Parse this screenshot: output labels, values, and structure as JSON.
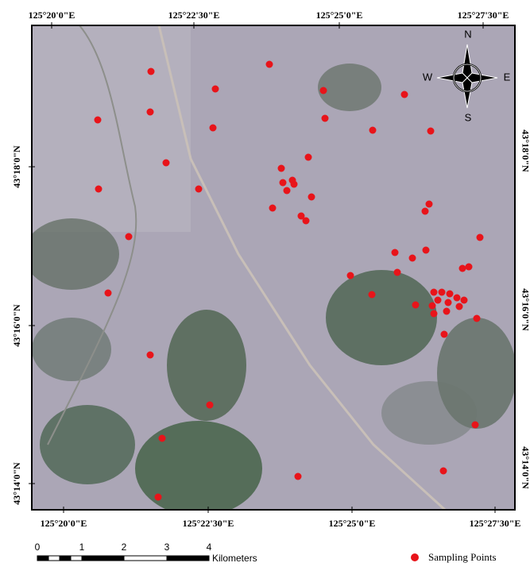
{
  "map": {
    "top_labels": [
      "125°20'0\"E",
      "125°22'30\"E",
      "125°25'0\"E",
      "125°27'30\"E"
    ],
    "bottom_labels": [
      "125°20'0\"E",
      "125°22'30\"E",
      "125°25'0\"E",
      "125°27'30\"E"
    ],
    "left_labels": [
      "43°18'0\"N",
      "43°16'0\"N",
      "43°14'0\"N"
    ],
    "right_labels": [
      "43°18'0\"N",
      "43°16'0\"N",
      "43°14'0\"N"
    ],
    "compass": {
      "n": "N",
      "e": "E",
      "s": "S",
      "w": "W"
    },
    "scale_bar": {
      "ticks": [
        "0",
        "1",
        "2",
        "3",
        "4"
      ],
      "unit": "Kilometers"
    },
    "legend": "Sampling Points"
  }
}
